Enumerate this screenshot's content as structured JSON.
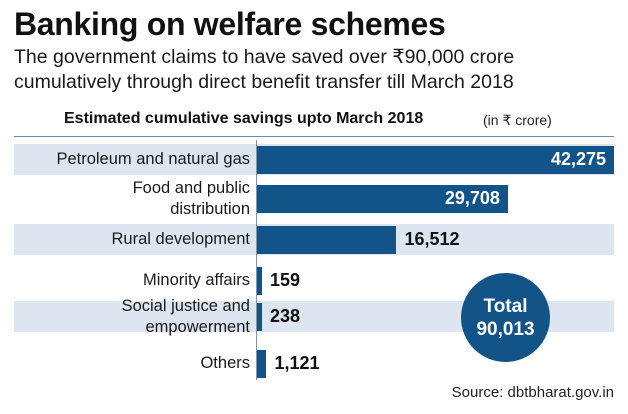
{
  "title": "Banking on welfare schemes",
  "subtitle": "The government claims to have saved over ₹90,000 crore cumulatively through direct benefit transfer till March 2018",
  "source": "Source: dbtbharat.gov.in",
  "total": {
    "label": "Total",
    "value": "90,013"
  },
  "colors": {
    "bar": "#135488",
    "band": "#dde6f0"
  },
  "chart_data": {
    "type": "bar",
    "orientation": "horizontal",
    "title": "Estimated cumulative savings upto March 2018",
    "unit": "(in ₹ crore)",
    "categories": [
      "Petroleum and natural gas",
      "Food and public distribution",
      "Rural development",
      "Minority affairs",
      "Social justice and empowerment",
      "Others"
    ],
    "category_lines": [
      [
        "Petroleum and natural gas"
      ],
      [
        "Food and public",
        "distribution"
      ],
      [
        "Rural development"
      ],
      [
        "Minority affairs"
      ],
      [
        "Social justice and",
        "empowerment"
      ],
      [
        "Others"
      ]
    ],
    "values": [
      42275,
      29708,
      16512,
      159,
      238,
      1121
    ],
    "value_labels": [
      "42,275",
      "29,708",
      "16,512",
      "159",
      "238",
      "1,121"
    ],
    "grid": false,
    "legend": "none"
  }
}
